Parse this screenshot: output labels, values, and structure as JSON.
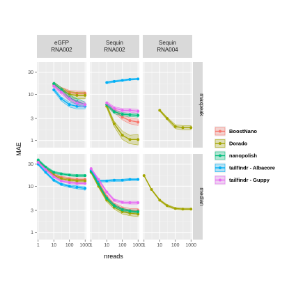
{
  "chart_data": {
    "type": "line",
    "xlabel": "nreads",
    "ylabel": "MAE",
    "x_scale": "log10",
    "y_scale": "log10",
    "xlim": [
      1,
      1000
    ],
    "ylim": [
      0.7,
      50
    ],
    "x_ticks": [
      1,
      10,
      100,
      1000
    ],
    "x_tick_labels": [
      "1",
      "10",
      "100",
      "1000"
    ],
    "y_ticks": [
      1,
      3,
      10,
      30
    ],
    "y_tick_labels": [
      "1",
      "3",
      "10",
      "30"
    ],
    "columns": [
      {
        "label1": "eGFP",
        "label2": "RNA002"
      },
      {
        "label1": "Sequin",
        "label2": "RNA002"
      },
      {
        "label1": "Sequin",
        "label2": "RNA004"
      }
    ],
    "rows": [
      {
        "label": "maxpeak"
      },
      {
        "label": "median"
      }
    ],
    "legend": {
      "position": "right",
      "entries": [
        {
          "name": "BoostNano",
          "color": "#F8766D"
        },
        {
          "name": "Dorado",
          "color": "#A3A500"
        },
        {
          "name": "nanopolish",
          "color": "#00BF7D"
        },
        {
          "name": "tailfindr - Albacore",
          "color": "#00B0F6"
        },
        {
          "name": "tailfindr - Guppy",
          "color": "#E76BF3"
        }
      ]
    },
    "panels": [
      {
        "row": 0,
        "col": 0,
        "series": [
          {
            "method": 0,
            "x": [
              10,
              30,
              100,
              300,
              1000
            ],
            "y": [
              16,
              13,
              11,
              10.5,
              10.5
            ],
            "lo": [
              14.5,
              11.8,
              9.8,
              9.3,
              9.3
            ],
            "hi": [
              17.5,
              14.2,
              12.2,
              11.7,
              11.7
            ]
          },
          {
            "method": 1,
            "x": [
              10,
              30,
              100,
              300,
              1000
            ],
            "y": [
              17,
              12.5,
              10,
              9.5,
              9.5
            ],
            "lo": [
              15.5,
              11,
              8.5,
              8,
              8
            ],
            "hi": [
              18.5,
              14,
              11.5,
              11,
              11
            ]
          },
          {
            "method": 2,
            "x": [
              10,
              30,
              100,
              300,
              1000
            ],
            "y": [
              17,
              12.5,
              8.5,
              7,
              6
            ],
            "lo": [
              15.5,
              11,
              7.3,
              6,
              5.2
            ],
            "hi": [
              18.5,
              14,
              9.7,
              8,
              6.8
            ]
          },
          {
            "method": 3,
            "x": [
              10,
              30,
              100,
              300,
              1000
            ],
            "y": [
              12.5,
              8,
              6,
              5.5,
              5.5
            ],
            "lo": [
              11.5,
              7.2,
              5.3,
              4.8,
              4.8
            ],
            "hi": [
              13.5,
              8.8,
              6.7,
              6.2,
              6.2
            ]
          },
          {
            "method": 4,
            "x": [
              10,
              30,
              100,
              300,
              1000
            ],
            "y": [
              15,
              11,
              8,
              6.5,
              6
            ],
            "lo": [
              13.8,
              10,
              7.2,
              5.8,
              5.3
            ],
            "hi": [
              16.2,
              12,
              8.8,
              7.2,
              6.7
            ]
          }
        ]
      },
      {
        "row": 0,
        "col": 1,
        "series": [
          {
            "method": 0,
            "x": [
              10,
              30,
              100,
              300,
              1000
            ],
            "y": [
              6,
              4.5,
              3.2,
              2.7,
              2.5
            ],
            "lo": [
              5.5,
              4,
              2.8,
              2.3,
              2.1
            ],
            "hi": [
              6.5,
              5,
              3.6,
              3.1,
              2.9
            ]
          },
          {
            "method": 1,
            "x": [
              10,
              30,
              100,
              300,
              1000
            ],
            "y": [
              5.5,
              2.3,
              1.3,
              1.05,
              1.05
            ],
            "lo": [
              5,
              2,
              1.05,
              0.85,
              0.8
            ],
            "hi": [
              6,
              2.6,
              1.6,
              1.3,
              1.35
            ]
          },
          {
            "method": 2,
            "x": [
              10,
              30,
              100,
              300,
              1000
            ],
            "y": [
              6,
              4.2,
              3.7,
              3.6,
              3.5
            ],
            "lo": [
              5.6,
              3.8,
              3.4,
              3.3,
              3.2
            ],
            "hi": [
              6.4,
              4.6,
              4,
              3.9,
              3.8
            ]
          },
          {
            "method": 3,
            "x": [
              10,
              30,
              100,
              300,
              1000
            ],
            "y": [
              18,
              19,
              20,
              21,
              21.5
            ],
            "lo": [
              17,
              18.2,
              19.2,
              20.2,
              20.7
            ],
            "hi": [
              19,
              19.8,
              20.8,
              21.8,
              22.3
            ]
          },
          {
            "method": 4,
            "x": [
              10,
              30,
              100,
              300,
              1000
            ],
            "y": [
              6.5,
              5,
              4.5,
              4.5,
              4.3
            ],
            "lo": [
              6,
              4.6,
              4.1,
              4.1,
              3.9
            ],
            "hi": [
              7,
              5.4,
              4.9,
              4.9,
              4.7
            ]
          }
        ]
      },
      {
        "row": 0,
        "col": 2,
        "series": [
          {
            "method": 1,
            "x": [
              10,
              30,
              100,
              300,
              1000
            ],
            "y": [
              4.5,
              3,
              2,
              1.9,
              1.9
            ],
            "lo": [
              4.3,
              2.8,
              1.8,
              1.7,
              1.7
            ],
            "hi": [
              4.7,
              3.2,
              2.2,
              2.1,
              2.1
            ]
          }
        ]
      },
      {
        "row": 1,
        "col": 0,
        "series": [
          {
            "method": 0,
            "x": [
              1,
              3,
              10,
              30,
              100,
              300,
              1000
            ],
            "y": [
              35,
              25,
              18,
              15.5,
              14.5,
              14,
              14
            ],
            "lo": [
              33,
              23.5,
              17,
              14.5,
              13.6,
              13.1,
              13.1
            ],
            "hi": [
              37,
              26.5,
              19,
              16.5,
              15.4,
              14.9,
              14.9
            ]
          },
          {
            "method": 1,
            "x": [
              1,
              3,
              10,
              30,
              100,
              300,
              1000
            ],
            "y": [
              35,
              24,
              17,
              14.5,
              13.5,
              13,
              13
            ],
            "lo": [
              33,
              22.5,
              16,
              13.6,
              12.7,
              12.2,
              12.2
            ],
            "hi": [
              37,
              25.5,
              18,
              15.4,
              14.3,
              13.8,
              13.8
            ]
          },
          {
            "method": 2,
            "x": [
              1,
              3,
              10,
              30,
              100,
              300,
              1000
            ],
            "y": [
              37,
              26,
              20,
              18.5,
              17.5,
              17,
              17
            ],
            "lo": [
              35,
              24.5,
              19,
              17.5,
              16.6,
              16.1,
              16.1
            ],
            "hi": [
              39,
              27.5,
              21,
              19.5,
              18.4,
              17.9,
              17.9
            ]
          },
          {
            "method": 3,
            "x": [
              1,
              3,
              10,
              30,
              100,
              300,
              1000
            ],
            "y": [
              30,
              20,
              13.5,
              11,
              10,
              9.5,
              9
            ],
            "lo": [
              28.5,
              19,
              12.8,
              10.4,
              9.4,
              8.8,
              8.2
            ],
            "hi": [
              31.5,
              21,
              14.2,
              11.6,
              10.6,
              10.2,
              9.8
            ]
          },
          {
            "method": 4,
            "x": [
              1,
              3,
              10,
              30,
              100,
              300,
              1000
            ],
            "y": [
              33,
              23,
              16,
              13,
              12,
              11.5,
              11.5
            ],
            "lo": [
              31.5,
              22,
              15.2,
              12.3,
              11.4,
              10.9,
              10.9
            ],
            "hi": [
              34.5,
              24,
              16.8,
              13.7,
              12.6,
              12.1,
              12.1
            ]
          }
        ]
      },
      {
        "row": 1,
        "col": 1,
        "series": [
          {
            "method": 0,
            "x": [
              1,
              3,
              10,
              30,
              100,
              300,
              1000
            ],
            "y": [
              22,
              12,
              6,
              4,
              3.3,
              3,
              3
            ],
            "lo": [
              21,
              11.3,
              5.6,
              3.7,
              3,
              2.7,
              2.7
            ],
            "hi": [
              23,
              12.7,
              6.4,
              4.3,
              3.6,
              3.3,
              3.3
            ]
          },
          {
            "method": 1,
            "x": [
              1,
              3,
              10,
              30,
              100,
              300,
              1000
            ],
            "y": [
              20,
              10,
              5,
              3.5,
              2.8,
              2.6,
              2.5
            ],
            "lo": [
              19,
              9.4,
              4.6,
              3.2,
              2.5,
              2.3,
              2.2
            ],
            "hi": [
              21,
              10.6,
              5.4,
              3.8,
              3.1,
              2.9,
              2.8
            ]
          },
          {
            "method": 2,
            "x": [
              1,
              3,
              10,
              30,
              100,
              300,
              1000
            ],
            "y": [
              21,
              11,
              5.5,
              3.8,
              3.1,
              2.9,
              2.8
            ],
            "lo": [
              20,
              10.4,
              5.2,
              3.5,
              2.9,
              2.7,
              2.6
            ],
            "hi": [
              22,
              11.6,
              5.8,
              4.1,
              3.3,
              3.1,
              3
            ]
          },
          {
            "method": 3,
            "x": [
              1,
              3,
              10,
              30,
              100,
              300,
              1000
            ],
            "y": [
              23,
              13,
              13,
              13.5,
              13.5,
              14,
              14
            ],
            "lo": [
              22,
              12.3,
              12.3,
              12.8,
              12.8,
              13.3,
              13.3
            ],
            "hi": [
              24,
              13.7,
              13.7,
              14.2,
              14.2,
              14.7,
              14.7
            ]
          },
          {
            "method": 4,
            "x": [
              1,
              3,
              10,
              30,
              100,
              300,
              1000
            ],
            "y": [
              24,
              14,
              7.5,
              5,
              4.5,
              4.4,
              4.4
            ],
            "lo": [
              23,
              13.3,
              7.1,
              4.7,
              4.2,
              4.1,
              4.1
            ],
            "hi": [
              25,
              14.7,
              7.9,
              5.3,
              4.8,
              4.7,
              4.7
            ]
          }
        ]
      },
      {
        "row": 1,
        "col": 2,
        "series": [
          {
            "method": 1,
            "x": [
              1,
              3,
              10,
              30,
              100,
              300,
              1000
            ],
            "y": [
              17,
              8.5,
              5,
              3.8,
              3.3,
              3.2,
              3.2
            ],
            "lo": [
              16.5,
              8.2,
              4.8,
              3.6,
              3.15,
              3.05,
              3.05
            ],
            "hi": [
              17.5,
              8.8,
              5.2,
              4,
              3.45,
              3.35,
              3.35
            ]
          }
        ]
      }
    ]
  }
}
